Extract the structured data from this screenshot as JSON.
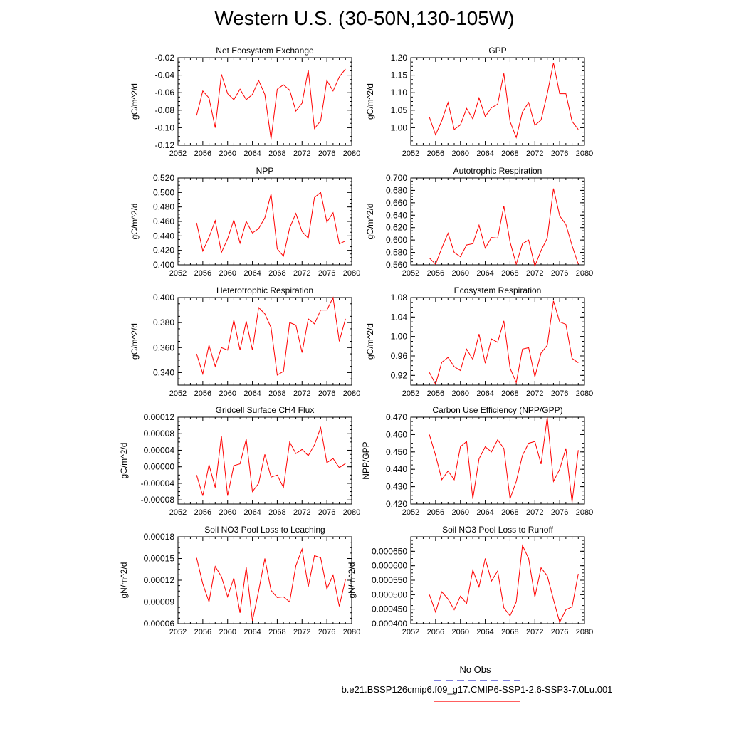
{
  "title": "Western U.S. (30-50N,130-105W)",
  "colors": {
    "series": "#ff0000",
    "obs": "#3333cc",
    "axis": "#000000"
  },
  "legend": {
    "entries": [
      {
        "label": "No Obs",
        "color": "#3333cc",
        "style": "dashed"
      },
      {
        "label": "b.e21.BSSP126cmip6.f09_g17.CMIP6-SSP1-2.6-SSP3-7.0Lu.001",
        "color": "#ff0000",
        "style": "solid"
      }
    ]
  },
  "chart_data": [
    {
      "type": "line",
      "title": "Net Ecosystem Exchange",
      "ylabel": "gC/m^2/d",
      "xlim": [
        2052,
        2080
      ],
      "ylim": [
        -0.12,
        -0.02
      ],
      "xticks": [
        "2052",
        "2056",
        "2060",
        "2064",
        "2068",
        "2072",
        "2076",
        "2080"
      ],
      "yticks": [
        "-0.12",
        "-0.10",
        "-0.08",
        "-0.06",
        "-0.04",
        "-0.02"
      ],
      "x": [
        2055,
        2056,
        2057,
        2058,
        2059,
        2060,
        2061,
        2062,
        2063,
        2064,
        2065,
        2066,
        2067,
        2068,
        2069,
        2070,
        2071,
        2072,
        2073,
        2074,
        2075,
        2076,
        2077,
        2078,
        2079
      ],
      "series": [
        {
          "values": [
            -0.086,
            -0.058,
            -0.066,
            -0.1,
            -0.039,
            -0.061,
            -0.068,
            -0.056,
            -0.068,
            -0.062,
            -0.046,
            -0.062,
            -0.113,
            -0.056,
            -0.051,
            -0.057,
            -0.081,
            -0.072,
            -0.034,
            -0.101,
            -0.092,
            -0.046,
            -0.058,
            -0.042,
            -0.033
          ]
        }
      ]
    },
    {
      "type": "line",
      "title": "GPP",
      "ylabel": "gC/m^2/d",
      "xlim": [
        2052,
        2080
      ],
      "ylim": [
        0.95,
        1.2
      ],
      "xticks": [
        "2052",
        "2056",
        "2060",
        "2064",
        "2068",
        "2072",
        "2076",
        "2080"
      ],
      "yticks": [
        "1.00",
        "1.05",
        "1.10",
        "1.15",
        "1.20"
      ],
      "x": [
        2055,
        2056,
        2057,
        2058,
        2059,
        2060,
        2061,
        2062,
        2063,
        2064,
        2065,
        2066,
        2067,
        2068,
        2069,
        2070,
        2071,
        2072,
        2073,
        2074,
        2075,
        2076,
        2077,
        2078,
        2079
      ],
      "series": [
        {
          "values": [
            1.03,
            0.98,
            1.02,
            1.072,
            0.995,
            1.008,
            1.055,
            1.025,
            1.085,
            1.032,
            1.057,
            1.067,
            1.155,
            1.018,
            0.972,
            1.045,
            1.072,
            1.007,
            1.022,
            1.097,
            1.185,
            1.097,
            1.097,
            1.018,
            0.995
          ]
        }
      ]
    },
    {
      "type": "line",
      "title": "NPP",
      "ylabel": "gC/m^2/d",
      "xlim": [
        2052,
        2080
      ],
      "ylim": [
        0.4,
        0.52
      ],
      "xticks": [
        "2052",
        "2056",
        "2060",
        "2064",
        "2068",
        "2072",
        "2076",
        "2080"
      ],
      "yticks": [
        "0.400",
        "0.420",
        "0.440",
        "0.460",
        "0.480",
        "0.500",
        "0.520"
      ],
      "x": [
        2055,
        2056,
        2057,
        2058,
        2059,
        2060,
        2061,
        2062,
        2063,
        2064,
        2065,
        2066,
        2067,
        2068,
        2069,
        2070,
        2071,
        2072,
        2073,
        2074,
        2075,
        2076,
        2077,
        2078,
        2079
      ],
      "series": [
        {
          "values": [
            0.458,
            0.419,
            0.438,
            0.461,
            0.417,
            0.436,
            0.462,
            0.43,
            0.46,
            0.444,
            0.45,
            0.465,
            0.498,
            0.422,
            0.412,
            0.451,
            0.471,
            0.446,
            0.437,
            0.493,
            0.5,
            0.459,
            0.472,
            0.429,
            0.433
          ]
        }
      ]
    },
    {
      "type": "line",
      "title": "Autotrophic Respiration",
      "ylabel": "gC/m^2/d",
      "xlim": [
        2052,
        2080
      ],
      "ylim": [
        0.56,
        0.7
      ],
      "xticks": [
        "2052",
        "2056",
        "2060",
        "2064",
        "2068",
        "2072",
        "2076",
        "2080"
      ],
      "yticks": [
        "0.560",
        "0.580",
        "0.600",
        "0.620",
        "0.640",
        "0.660",
        "0.680",
        "0.700"
      ],
      "x": [
        2055,
        2056,
        2057,
        2058,
        2059,
        2060,
        2061,
        2062,
        2063,
        2064,
        2065,
        2066,
        2067,
        2068,
        2069,
        2070,
        2071,
        2072,
        2073,
        2074,
        2075,
        2076,
        2077,
        2078,
        2079
      ],
      "series": [
        {
          "values": [
            0.571,
            0.561,
            0.587,
            0.611,
            0.58,
            0.573,
            0.592,
            0.594,
            0.624,
            0.587,
            0.604,
            0.603,
            0.655,
            0.597,
            0.561,
            0.594,
            0.6,
            0.558,
            0.583,
            0.603,
            0.683,
            0.639,
            0.625,
            0.591,
            0.561
          ]
        }
      ]
    },
    {
      "type": "line",
      "title": "Heterotrophic Respiration",
      "ylabel": "gC/m^2/d",
      "xlim": [
        2052,
        2080
      ],
      "ylim": [
        0.33,
        0.4
      ],
      "xticks": [
        "2052",
        "2056",
        "2060",
        "2064",
        "2068",
        "2072",
        "2076",
        "2080"
      ],
      "yticks": [
        "0.340",
        "0.360",
        "0.380",
        "0.400"
      ],
      "x": [
        2055,
        2056,
        2057,
        2058,
        2059,
        2060,
        2061,
        2062,
        2063,
        2064,
        2065,
        2066,
        2067,
        2068,
        2069,
        2070,
        2071,
        2072,
        2073,
        2074,
        2075,
        2076,
        2077,
        2078,
        2079
      ],
      "series": [
        {
          "values": [
            0.355,
            0.339,
            0.362,
            0.345,
            0.36,
            0.358,
            0.382,
            0.358,
            0.381,
            0.358,
            0.392,
            0.387,
            0.376,
            0.338,
            0.341,
            0.38,
            0.378,
            0.356,
            0.383,
            0.379,
            0.39,
            0.39,
            0.4,
            0.365,
            0.383
          ]
        }
      ]
    },
    {
      "type": "line",
      "title": "Ecosystem Respiration",
      "ylabel": "gC/m^2/d",
      "xlim": [
        2052,
        2080
      ],
      "ylim": [
        0.9,
        1.08
      ],
      "xticks": [
        "2052",
        "2056",
        "2060",
        "2064",
        "2068",
        "2072",
        "2076",
        "2080"
      ],
      "yticks": [
        "0.92",
        "0.96",
        "1.00",
        "1.04",
        "1.08"
      ],
      "x": [
        2055,
        2056,
        2057,
        2058,
        2059,
        2060,
        2061,
        2062,
        2063,
        2064,
        2065,
        2066,
        2067,
        2068,
        2069,
        2070,
        2071,
        2072,
        2073,
        2074,
        2075,
        2076,
        2077,
        2078,
        2079
      ],
      "series": [
        {
          "values": [
            0.926,
            0.902,
            0.947,
            0.957,
            0.938,
            0.93,
            0.974,
            0.953,
            1.005,
            0.945,
            0.995,
            0.988,
            1.032,
            0.935,
            0.905,
            0.974,
            0.977,
            0.917,
            0.966,
            0.982,
            1.073,
            1.03,
            1.025,
            0.955,
            0.946
          ]
        }
      ]
    },
    {
      "type": "line",
      "title": "Gridcell Surface CH4 Flux",
      "ylabel": "gC/m^2/d",
      "xlim": [
        2052,
        2080
      ],
      "ylim": [
        -9e-05,
        0.00012
      ],
      "xticks": [
        "2052",
        "2056",
        "2060",
        "2064",
        "2068",
        "2072",
        "2076",
        "2080"
      ],
      "yticks": [
        "-0.00008",
        "-0.00004",
        "0.00000",
        "0.00004",
        "0.00008",
        "0.00012"
      ],
      "x": [
        2055,
        2056,
        2057,
        2058,
        2059,
        2060,
        2061,
        2062,
        2063,
        2064,
        2065,
        2066,
        2067,
        2068,
        2069,
        2070,
        2071,
        2072,
        2073,
        2074,
        2075,
        2076,
        2077,
        2078,
        2079
      ],
      "series": [
        {
          "values": [
            -2e-05,
            -7e-05,
            5e-06,
            -5e-05,
            7.5e-05,
            -7e-05,
            3e-06,
            7e-06,
            6.7e-05,
            -6e-05,
            -4e-05,
            3e-05,
            -2.5e-05,
            -2e-05,
            -5e-05,
            6e-05,
            3.2e-05,
            4.2e-05,
            2.7e-05,
            5.3e-05,
            9.5e-05,
            1e-05,
            2e-05,
            -2e-06,
            8e-06
          ]
        }
      ]
    },
    {
      "type": "line",
      "title": "Carbon Use Efficiency (NPP/GPP)",
      "ylabel": "NPP/GPP",
      "xlim": [
        2052,
        2080
      ],
      "ylim": [
        0.42,
        0.47
      ],
      "xticks": [
        "2052",
        "2056",
        "2060",
        "2064",
        "2068",
        "2072",
        "2076",
        "2080"
      ],
      "yticks": [
        "0.420",
        "0.430",
        "0.440",
        "0.450",
        "0.460",
        "0.470"
      ],
      "x": [
        2055,
        2056,
        2057,
        2058,
        2059,
        2060,
        2061,
        2062,
        2063,
        2064,
        2065,
        2066,
        2067,
        2068,
        2069,
        2070,
        2071,
        2072,
        2073,
        2074,
        2075,
        2076,
        2077,
        2078,
        2079
      ],
      "series": [
        {
          "values": [
            0.46,
            0.448,
            0.434,
            0.439,
            0.434,
            0.453,
            0.456,
            0.423,
            0.446,
            0.453,
            0.45,
            0.457,
            0.452,
            0.423,
            0.433,
            0.448,
            0.455,
            0.456,
            0.443,
            0.47,
            0.433,
            0.44,
            0.452,
            0.421,
            0.451
          ]
        }
      ]
    },
    {
      "type": "line",
      "title": "Soil NO3 Pool Loss to Leaching",
      "ylabel": "gN/m^2/d",
      "xlim": [
        2052,
        2080
      ],
      "ylim": [
        6e-05,
        0.00018
      ],
      "xticks": [
        "2052",
        "2056",
        "2060",
        "2064",
        "2068",
        "2072",
        "2076",
        "2080"
      ],
      "yticks": [
        "0.00006",
        "0.00009",
        "0.00012",
        "0.00015",
        "0.00018"
      ],
      "x": [
        2055,
        2056,
        2057,
        2058,
        2059,
        2060,
        2061,
        2062,
        2063,
        2064,
        2065,
        2066,
        2067,
        2068,
        2069,
        2070,
        2071,
        2072,
        2073,
        2074,
        2075,
        2076,
        2077,
        2078,
        2079
      ],
      "series": [
        {
          "values": [
            0.000151,
            0.000115,
            9e-05,
            0.000139,
            0.000125,
            9.7e-05,
            0.000123,
            7.5e-05,
            0.000138,
            6.4e-05,
            0.000105,
            0.00015,
            0.000106,
            9.6e-05,
            9.7e-05,
            9e-05,
            0.00014,
            0.000163,
            0.000111,
            0.000154,
            0.000151,
            0.000108,
            0.000127,
            8.4e-05,
            0.000121
          ]
        }
      ]
    },
    {
      "type": "line",
      "title": "Soil NO3 Pool Loss to Runoff",
      "ylabel": "gN/m^2/d",
      "xlim": [
        2052,
        2080
      ],
      "ylim": [
        0.0004,
        0.0007
      ],
      "xticks": [
        "2052",
        "2056",
        "2060",
        "2064",
        "2068",
        "2072",
        "2076",
        "2080"
      ],
      "yticks": [
        "0.000400",
        "0.000450",
        "0.000500",
        "0.000550",
        "0.000600",
        "0.000650"
      ],
      "x": [
        2055,
        2056,
        2057,
        2058,
        2059,
        2060,
        2061,
        2062,
        2063,
        2064,
        2065,
        2066,
        2067,
        2068,
        2069,
        2070,
        2071,
        2072,
        2073,
        2074,
        2075,
        2076,
        2077,
        2078,
        2079
      ],
      "series": [
        {
          "values": [
            0.0005,
            0.00044,
            0.00051,
            0.000485,
            0.000448,
            0.000495,
            0.00047,
            0.000585,
            0.000527,
            0.000625,
            0.000547,
            0.000582,
            0.000455,
            0.000427,
            0.000475,
            0.00067,
            0.000625,
            0.000492,
            0.000593,
            0.000565,
            0.000483,
            0.000405,
            0.000448,
            0.000458,
            0.000572
          ]
        }
      ]
    }
  ]
}
